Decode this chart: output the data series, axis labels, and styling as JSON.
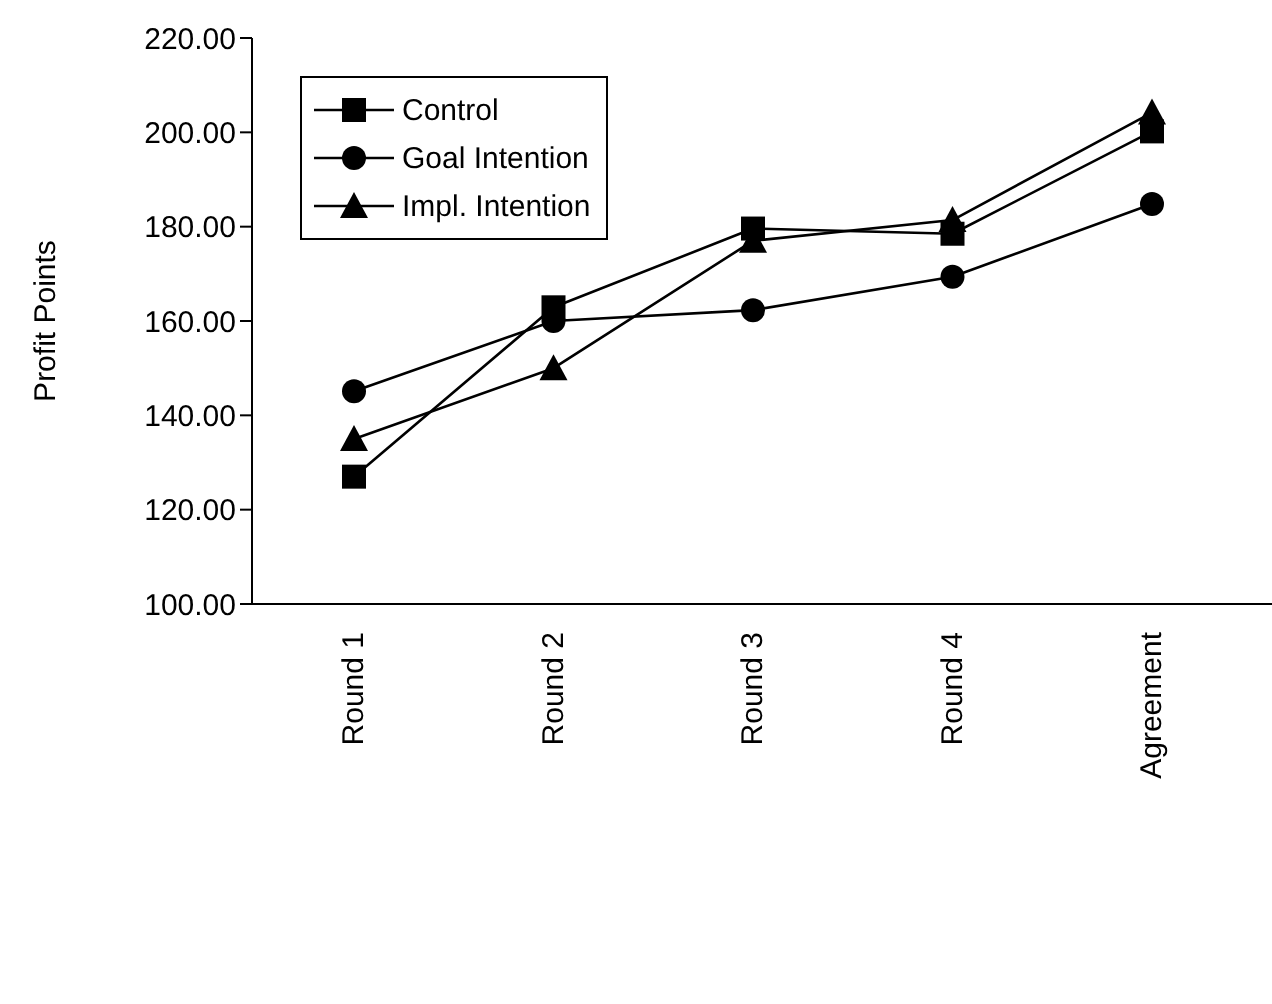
{
  "chart_data": {
    "type": "line",
    "ylabel": "Profit Points",
    "categories": [
      "Round 1",
      "Round 2",
      "Round 3",
      "Round 4",
      "Agreement"
    ],
    "series": [
      {
        "name": "Control",
        "color": "#000000",
        "marker": "square",
        "values": [
          127.0,
          162.9,
          179.6,
          178.5,
          200.2
        ]
      },
      {
        "name": "Goal Intention",
        "color": "#000000",
        "marker": "circle",
        "values": [
          145.1,
          160.0,
          162.3,
          169.4,
          184.8
        ]
      },
      {
        "name": "Impl. Intention",
        "color": "#000000",
        "marker": "triangle",
        "values": [
          135.0,
          150.0,
          177.0,
          181.4,
          204.2
        ]
      }
    ],
    "ylim": [
      100,
      220
    ],
    "yticks": [
      {
        "value": 100,
        "label": "100.00"
      },
      {
        "value": 120,
        "label": "120.00"
      },
      {
        "value": 140,
        "label": "140.00"
      },
      {
        "value": 160,
        "label": "160.00"
      },
      {
        "value": 180,
        "label": "180.00"
      },
      {
        "value": 200,
        "label": "200.00"
      },
      {
        "value": 220,
        "label": "220.00"
      }
    ],
    "grid": false,
    "legend": "top left"
  }
}
